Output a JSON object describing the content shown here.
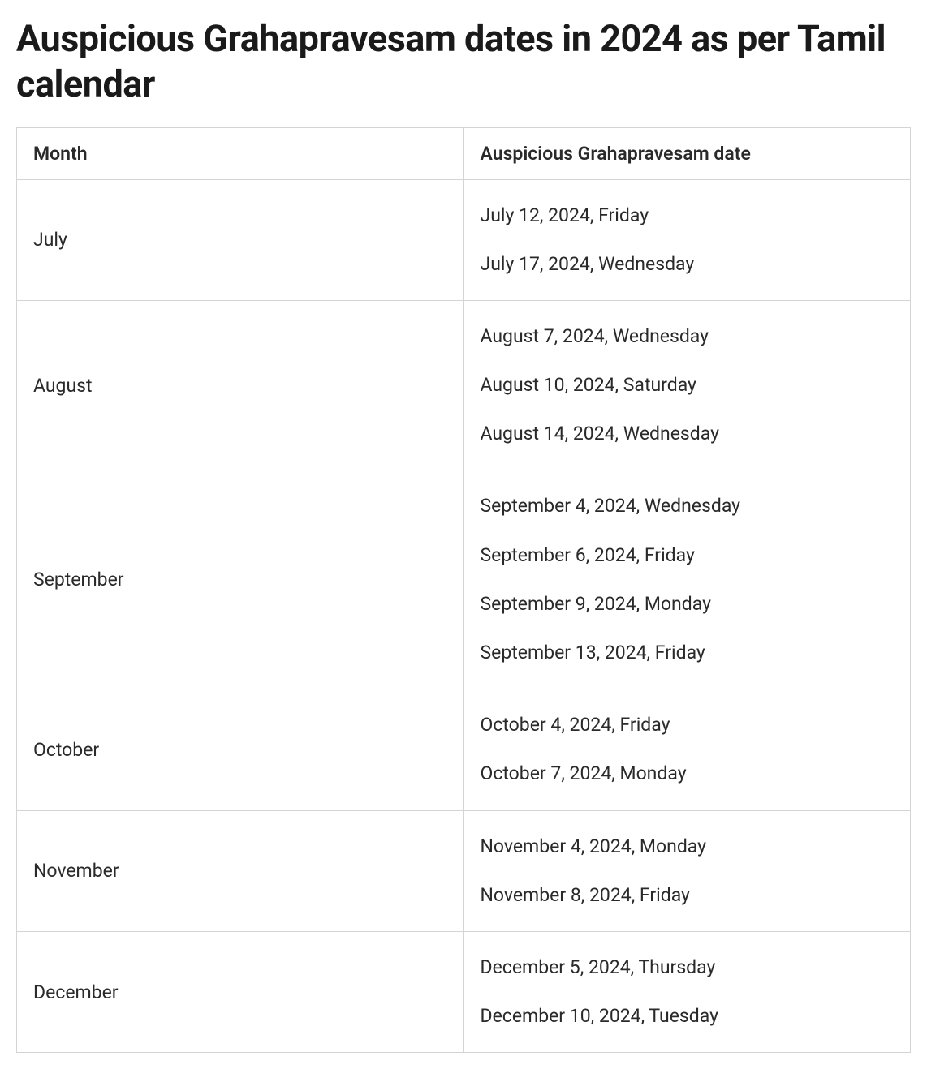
{
  "title": "Auspicious Grahapravesam dates in 2024 as per Tamil calendar",
  "table": {
    "type": "table",
    "columns": [
      {
        "label": "Month",
        "width_pct": 50,
        "align": "left"
      },
      {
        "label": "Auspicious Grahapravesam date",
        "width_pct": 50,
        "align": "left"
      }
    ],
    "rows": [
      {
        "month": "July",
        "dates": [
          "July 12, 2024, Friday",
          "July 17, 2024, Wednesday"
        ]
      },
      {
        "month": "August",
        "dates": [
          "August 7, 2024, Wednesday",
          "August 10, 2024, Saturday",
          "August 14, 2024, Wednesday"
        ]
      },
      {
        "month": "September",
        "dates": [
          "September 4, 2024, Wednesday",
          "September 6, 2024, Friday",
          "September 9, 2024, Monday",
          "September 13, 2024, Friday"
        ]
      },
      {
        "month": "October",
        "dates": [
          "October 4, 2024, Friday",
          "October 7, 2024, Monday"
        ]
      },
      {
        "month": "November",
        "dates": [
          "November 4, 2024, Monday",
          "November 8, 2024, Friday"
        ]
      },
      {
        "month": "December",
        "dates": [
          "December 5, 2024, Thursday",
          "December 10, 2024, Tuesday"
        ]
      }
    ],
    "border_color": "#d4d4d4",
    "background_color": "#ffffff",
    "header_fontsize": 23,
    "cell_fontsize": 23,
    "text_color": "#2a2a2a"
  },
  "title_fontsize": 45,
  "title_color": "#1a1a1a"
}
